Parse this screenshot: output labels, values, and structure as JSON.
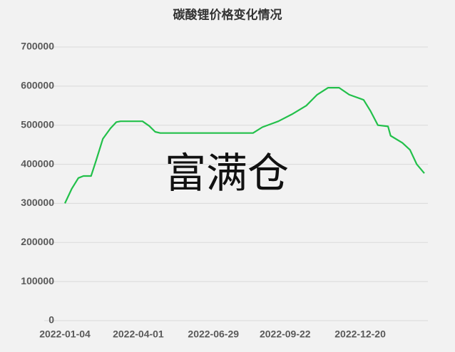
{
  "chart_data": {
    "type": "line",
    "title": "碳酸锂价格变化情况",
    "watermark": "富满仓",
    "x": [
      "2022-01-04",
      "2022-01-12",
      "2022-01-20",
      "2022-01-26",
      "2022-02-04",
      "2022-02-10",
      "2022-02-18",
      "2022-02-27",
      "2022-03-06",
      "2022-03-11",
      "2022-04-06",
      "2022-04-14",
      "2022-04-21",
      "2022-04-27",
      "2022-08-15",
      "2022-08-26",
      "2022-09-14",
      "2022-09-30",
      "2022-10-17",
      "2022-10-30",
      "2022-11-12",
      "2022-11-25",
      "2022-12-07",
      "2022-12-24",
      "2023-01-01",
      "2023-01-10",
      "2023-01-22",
      "2023-01-25",
      "2023-02-08",
      "2023-02-17",
      "2023-02-25",
      "2023-03-06"
    ],
    "series": [
      {
        "name": "碳酸锂价格",
        "color": "#22c04a",
        "values": [
          300000,
          337000,
          365000,
          370000,
          370000,
          410000,
          465000,
          492000,
          508000,
          510000,
          510000,
          498000,
          483000,
          480000,
          480000,
          495000,
          510000,
          528000,
          550000,
          578000,
          596000,
          596000,
          578000,
          565000,
          537000,
          500000,
          497000,
          473000,
          455000,
          437000,
          400000,
          377000
        ]
      }
    ],
    "xlim": [
      "2022-01-04",
      "2023-03-06"
    ],
    "xticks": [
      "2022-01-04",
      "2022-04-01",
      "2022-06-29",
      "2022-09-22",
      "2022-12-20"
    ],
    "ylim": [
      0,
      700000
    ],
    "yticks": [
      0,
      100000,
      200000,
      300000,
      400000,
      500000,
      600000,
      700000
    ],
    "grid": true
  }
}
